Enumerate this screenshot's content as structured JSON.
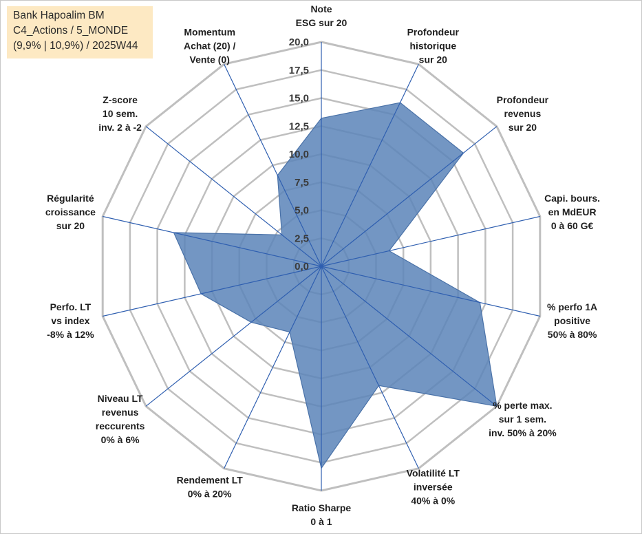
{
  "title_box": {
    "line1": "Bank Hapoalim BM",
    "line2": "C4_Actions / 5_MONDE",
    "line3": "(9,9% | 10,9%) / 2025W44"
  },
  "colors": {
    "fill": "#5b84b8",
    "fill_stroke": "#4a72a8",
    "spoke": "#2f5fb0",
    "grid": "#bfbfbf",
    "background": "#fde9c3"
  },
  "chart_data": {
    "type": "radar",
    "title": "",
    "rmin": 0,
    "rmax": 20,
    "ticks": [
      "0,0",
      "2,5",
      "5,0",
      "7,5",
      "10,0",
      "12,5",
      "15,0",
      "17,5",
      "20,0"
    ],
    "axes": [
      {
        "label": [
          "Note",
          "ESG sur 20"
        ],
        "value": 13.2
      },
      {
        "label": [
          "Profondeur",
          "historique",
          "sur 20"
        ],
        "value": 16.2
      },
      {
        "label": [
          "Profondeur",
          "revenus",
          "sur 20"
        ],
        "value": 16.2
      },
      {
        "label": [
          "Capi. bours.",
          "en MdEUR",
          "0 à 60 G€"
        ],
        "value": 6.2
      },
      {
        "label": [
          "% perfo 1A",
          "positive",
          "50% à 80%"
        ],
        "value": 14.5
      },
      {
        "label": [
          "% perte max.",
          "sur 1 sem.",
          "inv. 50% à 20%"
        ],
        "value": 20.0
      },
      {
        "label": [
          "Volatilité LT",
          "inversée",
          "40% à 0%"
        ],
        "value": 11.8
      },
      {
        "label": [
          "Ratio Sharpe",
          "0 à 1"
        ],
        "value": 18.0
      },
      {
        "label": [
          "Rendement LT",
          "0% à 20%"
        ],
        "value": 6.5
      },
      {
        "label": [
          "Niveau LT",
          "revenus",
          "reccurents",
          "0% à 6%"
        ],
        "value": 8.0
      },
      {
        "label": [
          "Perfo. LT",
          "vs index",
          "-8% à 12%"
        ],
        "value": 11.0
      },
      {
        "label": [
          "Régularité",
          "croissance",
          "sur 20"
        ],
        "value": 13.5
      },
      {
        "label": [
          "Z-score",
          "10 sem.",
          "inv. 2 à -2"
        ],
        "value": 4.5
      },
      {
        "label": [
          "Momentum",
          "Achat (20) /",
          "Vente (0)"
        ],
        "value": 9.0
      }
    ]
  }
}
